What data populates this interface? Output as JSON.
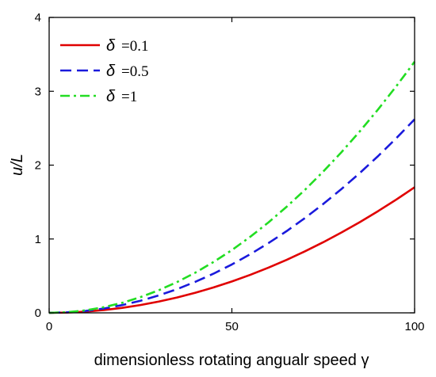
{
  "chart_data": {
    "type": "line",
    "xlabel": "dimensionless rotating angualr speed γ",
    "ylabel": "u/L",
    "xlim": [
      0,
      100
    ],
    "ylim": [
      0,
      4
    ],
    "x_ticks": [
      "0",
      "50",
      "100"
    ],
    "y_ticks": [
      "0",
      "1",
      "2",
      "3",
      "4"
    ],
    "grid": false,
    "legend_position": "top-left",
    "x": [
      0,
      5,
      10,
      15,
      20,
      25,
      30,
      35,
      40,
      45,
      50,
      55,
      60,
      65,
      70,
      75,
      80,
      85,
      90,
      95,
      100
    ],
    "series": [
      {
        "name": "δ =0.1",
        "legend_symbol": "δ",
        "legend_value": "=0.1",
        "color": "#e00000",
        "dash": "solid",
        "values": [
          0,
          0.004,
          0.017,
          0.038,
          0.068,
          0.106,
          0.153,
          0.208,
          0.272,
          0.344,
          0.425,
          0.514,
          0.612,
          0.718,
          0.833,
          0.956,
          1.088,
          1.228,
          1.377,
          1.534,
          1.7
        ]
      },
      {
        "name": "δ =0.5",
        "legend_symbol": "δ",
        "legend_value": "=0.5",
        "color": "#1a1adc",
        "dash": "dashed",
        "values": [
          0,
          0.007,
          0.026,
          0.059,
          0.105,
          0.164,
          0.236,
          0.321,
          0.42,
          0.531,
          0.655,
          0.793,
          0.944,
          1.107,
          1.284,
          1.474,
          1.677,
          1.893,
          2.122,
          2.365,
          2.62
        ]
      },
      {
        "name": "δ =1",
        "legend_symbol": "δ",
        "legend_value": "=1",
        "color": "#22dd22",
        "dash": "dash-dot",
        "values": [
          0,
          0.009,
          0.034,
          0.077,
          0.136,
          0.213,
          0.306,
          0.417,
          0.544,
          0.689,
          0.85,
          1.029,
          1.224,
          1.437,
          1.666,
          1.913,
          2.176,
          2.457,
          2.754,
          3.069,
          3.4
        ]
      }
    ]
  }
}
